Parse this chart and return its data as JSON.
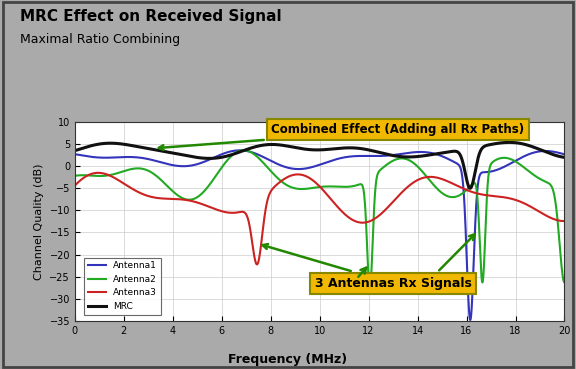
{
  "title": "MRC Effect on Received Signal",
  "subtitle": "Maximal Ratio Combining",
  "xlabel": "Frequency (MHz)",
  "ylabel": "Channel Quality (dB)",
  "xlim": [
    0,
    20
  ],
  "ylim": [
    -35,
    10
  ],
  "xticks": [
    0,
    2,
    4,
    6,
    8,
    10,
    12,
    14,
    16,
    18,
    20
  ],
  "yticks": [
    10,
    5,
    0,
    -5,
    -10,
    -15,
    -20,
    -25,
    -30,
    -35
  ],
  "colors": {
    "antenna1": "#3333bb",
    "antenna2": "#22aa22",
    "antenna3": "#cc2222",
    "mrc": "#111111"
  },
  "legend_labels": [
    "Antenna1",
    "Antenna2",
    "Antenna3",
    "MRC"
  ],
  "annotation_box1": "Combined Effect (Adding all Rx Paths)",
  "annotation_box2": "3 Antennas Rx Signals",
  "box_facecolor": "#f0b800",
  "box_edgecolor": "#888800",
  "arrow_color": "#228800",
  "background_color": "#ffffff",
  "outer_background": "#aaaaaa",
  "plot_bg": "#ffffff"
}
